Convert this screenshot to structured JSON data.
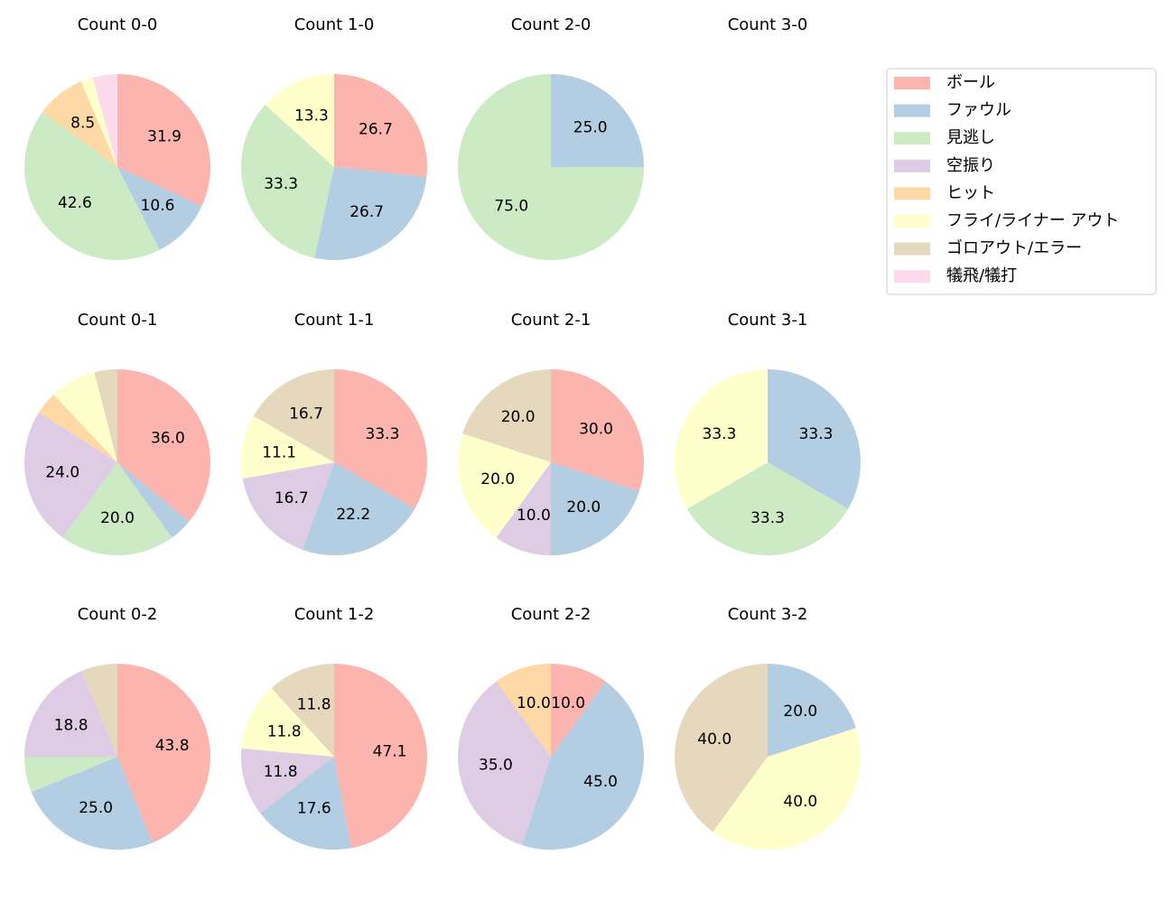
{
  "chart_data": [
    {
      "type": "pie",
      "title": "Count 0-0",
      "values": [
        31.9,
        10.6,
        42.6,
        8.5,
        2.1,
        4.3
      ],
      "value_labels": [
        "31.9",
        "10.6",
        "42.6",
        "8.5",
        null,
        null
      ],
      "colors": [
        "#fbb4ae",
        "#b3cde3",
        "#ccebc5",
        "#fed9a6",
        "#ffffcc",
        "#fddaec"
      ]
    },
    {
      "type": "pie",
      "title": "Count 1-0",
      "values": [
        26.7,
        26.7,
        33.3,
        13.3
      ],
      "value_labels": [
        "26.7",
        "26.7",
        "33.3",
        "13.3"
      ],
      "colors": [
        "#fbb4ae",
        "#b3cde3",
        "#ccebc5",
        "#ffffcc"
      ]
    },
    {
      "type": "pie",
      "title": "Count 2-0",
      "values": [
        25.0,
        75.0
      ],
      "value_labels": [
        "25.0",
        "75.0"
      ],
      "colors": [
        "#b3cde3",
        "#ccebc5"
      ]
    },
    {
      "type": "pie",
      "title": "Count 3-0",
      "values": [],
      "value_labels": [],
      "colors": []
    },
    {
      "type": "pie",
      "title": "Count 0-1",
      "values": [
        36.0,
        4.0,
        20.0,
        24.0,
        4.0,
        8.0,
        4.0
      ],
      "value_labels": [
        "36.0",
        null,
        "20.0",
        "24.0",
        null,
        null,
        null
      ],
      "colors": [
        "#fbb4ae",
        "#b3cde3",
        "#ccebc5",
        "#decbe4",
        "#fed9a6",
        "#ffffcc",
        "#e5d8bd"
      ]
    },
    {
      "type": "pie",
      "title": "Count 1-1",
      "values": [
        33.3,
        22.2,
        16.7,
        11.1,
        16.7
      ],
      "value_labels": [
        "33.3",
        "22.2",
        "16.7",
        "11.1",
        "16.7"
      ],
      "colors": [
        "#fbb4ae",
        "#b3cde3",
        "#decbe4",
        "#ffffcc",
        "#e5d8bd"
      ]
    },
    {
      "type": "pie",
      "title": "Count 2-1",
      "values": [
        30.0,
        20.0,
        10.0,
        20.0,
        20.0
      ],
      "value_labels": [
        "30.0",
        "20.0",
        "10.0",
        "20.0",
        "20.0"
      ],
      "colors": [
        "#fbb4ae",
        "#b3cde3",
        "#decbe4",
        "#ffffcc",
        "#e5d8bd"
      ]
    },
    {
      "type": "pie",
      "title": "Count 3-1",
      "values": [
        33.3,
        33.3,
        33.3
      ],
      "value_labels": [
        "33.3",
        "33.3",
        "33.3"
      ],
      "colors": [
        "#b3cde3",
        "#ccebc5",
        "#ffffcc"
      ]
    },
    {
      "type": "pie",
      "title": "Count 0-2",
      "values": [
        43.8,
        25.0,
        6.2,
        18.8,
        6.2
      ],
      "value_labels": [
        "43.8",
        "25.0",
        null,
        "18.8",
        null
      ],
      "colors": [
        "#fbb4ae",
        "#b3cde3",
        "#ccebc5",
        "#decbe4",
        "#e5d8bd"
      ]
    },
    {
      "type": "pie",
      "title": "Count 1-2",
      "values": [
        47.1,
        17.6,
        11.8,
        11.8,
        11.8
      ],
      "value_labels": [
        "47.1",
        "17.6",
        "11.8",
        "11.8",
        "11.8"
      ],
      "colors": [
        "#fbb4ae",
        "#b3cde3",
        "#decbe4",
        "#ffffcc",
        "#e5d8bd"
      ]
    },
    {
      "type": "pie",
      "title": "Count 2-2",
      "values": [
        10.0,
        45.0,
        35.0,
        10.0
      ],
      "value_labels": [
        "10.0",
        "45.0",
        "35.0",
        "10.0"
      ],
      "colors": [
        "#fbb4ae",
        "#b3cde3",
        "#decbe4",
        "#fed9a6"
      ]
    },
    {
      "type": "pie",
      "title": "Count 3-2",
      "values": [
        20.0,
        40.0,
        40.0
      ],
      "value_labels": [
        "20.0",
        "40.0",
        "40.0"
      ],
      "colors": [
        "#b3cde3",
        "#ffffcc",
        "#e5d8bd"
      ]
    }
  ],
  "legend": {
    "labels": [
      "ボール",
      "ファウル",
      "見逃し",
      "空振り",
      "ヒット",
      "フライ/ライナー アウト",
      "ゴロアウト/エラー",
      "犠飛/犠打"
    ],
    "colors": [
      "#fbb4ae",
      "#b3cde3",
      "#ccebc5",
      "#decbe4",
      "#fed9a6",
      "#ffffcc",
      "#e5d8bd",
      "#fddaec"
    ]
  }
}
